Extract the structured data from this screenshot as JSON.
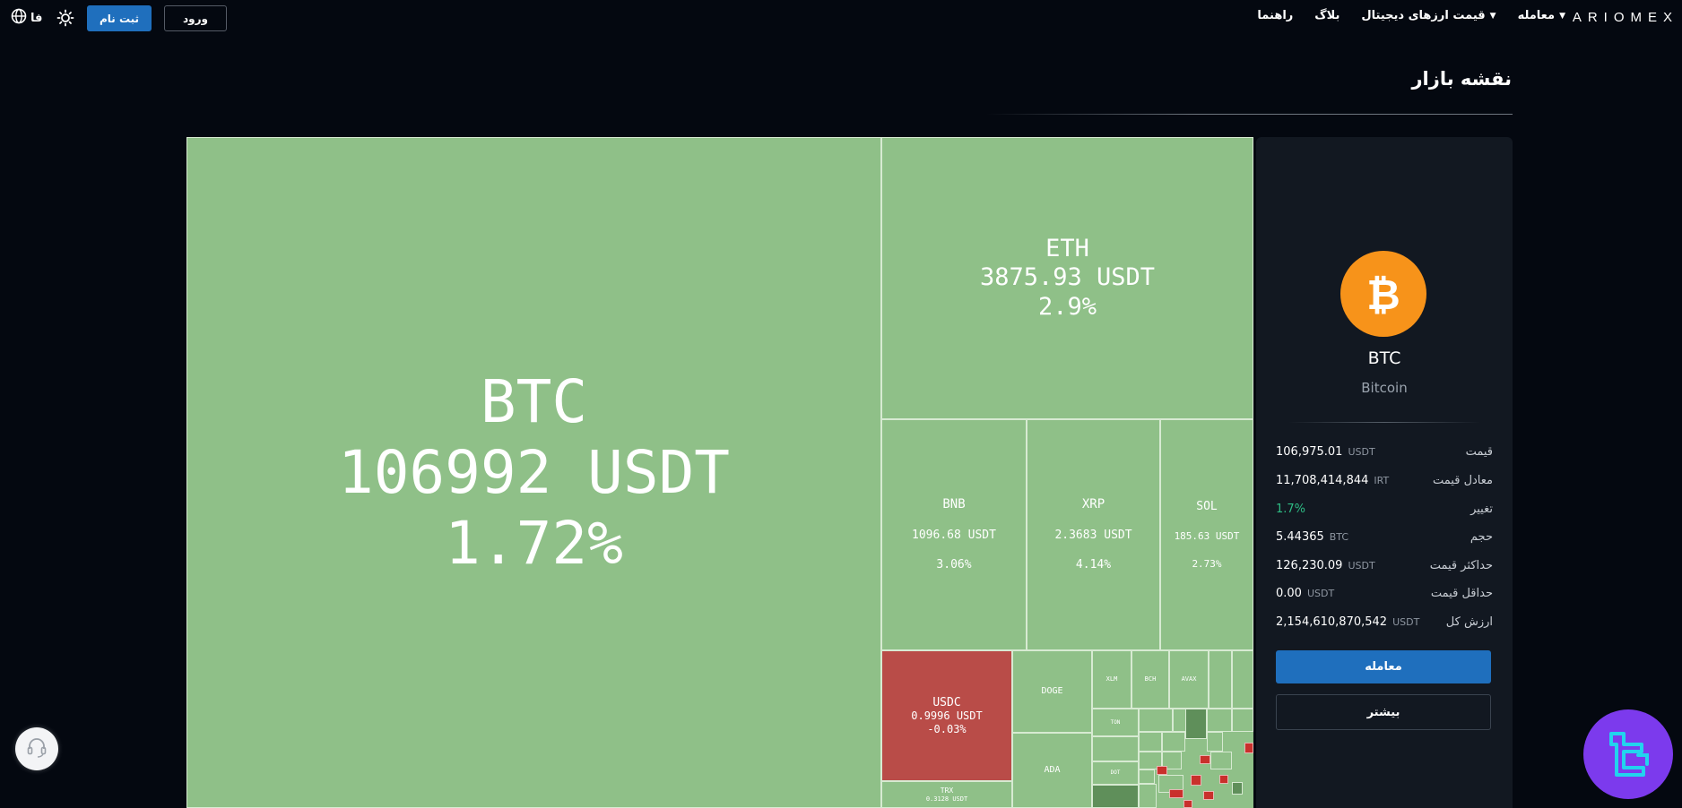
{
  "header": {
    "logo": "ARIOMEX",
    "nav": [
      {
        "label": "معامله",
        "has_dropdown": true
      },
      {
        "label": "قیمت ارزهای دیجیتال",
        "has_dropdown": true
      },
      {
        "label": "بلاگ",
        "has_dropdown": false
      },
      {
        "label": "راهنما",
        "has_dropdown": false
      }
    ],
    "login_label": "ورود",
    "register_label": "ثبت نام",
    "language": "فا",
    "icons": [
      "sun-icon",
      "globe-icon",
      "chevron-down-icon"
    ]
  },
  "page": {
    "title": "نقشه بازار"
  },
  "treemap": {
    "colors": {
      "up": "#8fc088",
      "down": "#b94c48",
      "border": "#d7ead2"
    },
    "cells": [
      {
        "symbol": "BTC",
        "price": "106992 USDT",
        "change": "1.72%"
      },
      {
        "symbol": "ETH",
        "price": "3875.93 USDT",
        "change": "2.9%"
      },
      {
        "symbol": "BNB",
        "price": "1096.68 USDT",
        "change": "3.06%"
      },
      {
        "symbol": "XRP",
        "price": "2.3683 USDT",
        "change": "4.14%"
      },
      {
        "symbol": "SOL",
        "price": "185.63 USDT",
        "change": "2.73%"
      },
      {
        "symbol": "USDC",
        "price": "0.9996 USDT",
        "change": "-0.03%"
      },
      {
        "symbol": "DOGE"
      },
      {
        "symbol": "ADA"
      },
      {
        "symbol": "TRX",
        "price": "0.3128 USDT"
      },
      {
        "symbol": "XLM"
      },
      {
        "symbol": "BCH"
      },
      {
        "symbol": "AVAX"
      },
      {
        "symbol": "TON"
      },
      {
        "symbol": "DOT"
      }
    ]
  },
  "coin_panel": {
    "symbol": "BTC",
    "name": "Bitcoin",
    "icon_color": "#f7931a",
    "rows": [
      {
        "label": "قیمت",
        "value": "106,975.01",
        "unit": "USDT"
      },
      {
        "label": "معادل قیمت",
        "value": "11,708,414,844",
        "unit": "IRT"
      },
      {
        "label": "تغییر",
        "value": "1.7%",
        "unit": ""
      },
      {
        "label": "حجم",
        "value": "5.44365",
        "unit": "BTC"
      },
      {
        "label": "حداکثر قیمت",
        "value": "126,230.09",
        "unit": "USDT"
      },
      {
        "label": "حداقل قیمت",
        "value": "0.00",
        "unit": "USDT"
      },
      {
        "label": "ارزش کل",
        "value": "2,154,610,870,542",
        "unit": "USDT"
      }
    ],
    "trade_button": "معامله",
    "more_button": "بیشتر"
  },
  "widgets": {
    "support_icon": "headset-icon",
    "brand_icon": "tradingfinder-logo-icon"
  }
}
